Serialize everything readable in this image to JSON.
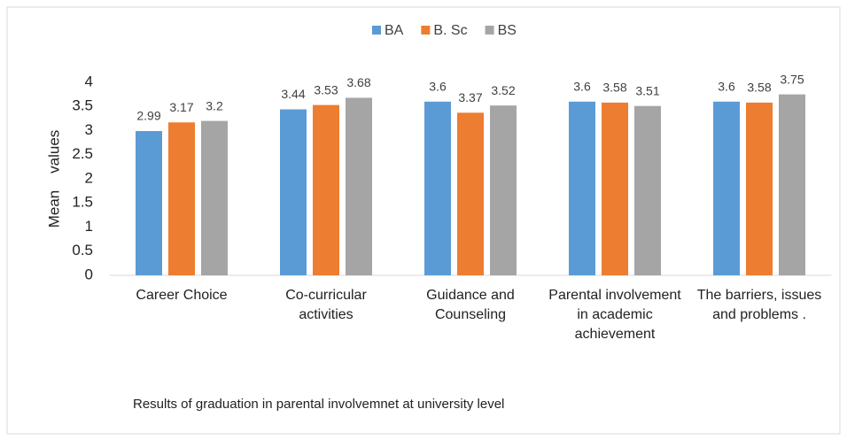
{
  "chart_data": {
    "type": "bar",
    "title": "Results of graduation in parental involvemnet at university level",
    "y_label": "Mean    values",
    "categories": [
      "Career Choice",
      "Co-curricular activities",
      "Guidance and Counseling",
      "Parental involvement in academic achievement",
      "The barriers, issues and problems ."
    ],
    "series": [
      {
        "name": "BA",
        "color": "#5b9bd5",
        "values": [
          2.99,
          3.44,
          3.6,
          3.6,
          3.6
        ]
      },
      {
        "name": "B. Sc",
        "color": "#ed7d31",
        "values": [
          3.17,
          3.53,
          3.37,
          3.58,
          3.58
        ]
      },
      {
        "name": "BS",
        "color": "#a5a5a5",
        "values": [
          3.2,
          3.68,
          3.52,
          3.51,
          3.75
        ]
      }
    ],
    "ylim": [
      0,
      4
    ],
    "yticks": [
      0,
      0.5,
      1,
      1.5,
      2,
      2.5,
      3,
      3.5,
      4
    ],
    "grid": false,
    "legend": "top"
  }
}
